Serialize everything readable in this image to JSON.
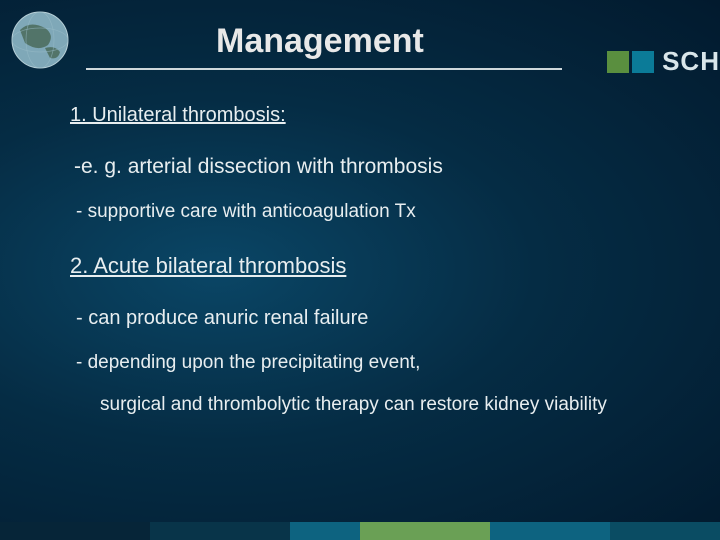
{
  "title": "Management",
  "logo_text": "SCH",
  "lines": {
    "l1": "1. Unilateral thrombosis:",
    "l2": "-e. g. arterial dissection with thrombosis",
    "l3": "- supportive care with anticoagulation Tx",
    "l4": "2. Acute bilateral thrombosis",
    "l5": "- can produce anuric renal failure",
    "l6": "- depending upon the precipitating event,",
    "l7": "surgical and thrombolytic therapy can restore kidney viability"
  },
  "colors": {
    "title_text": "#e8e8e8",
    "body_text": "#e8eef0",
    "underline": "#cfd8db",
    "logo_green": "#5a8f3f",
    "logo_teal": "#0b7b98",
    "bg_inner": "#0a4666",
    "bg_outer": "#021a2e"
  },
  "footer_segments": [
    {
      "color": "#062538",
      "width": 150
    },
    {
      "color": "#083449",
      "width": 140
    },
    {
      "color": "#0d6380",
      "width": 70
    },
    {
      "color": "#6aa055",
      "width": 130
    },
    {
      "color": "#0d6380",
      "width": 120
    },
    {
      "color": "#0a4c63",
      "width": 110
    }
  ],
  "font_sizes": {
    "title": 34,
    "section": 20,
    "body": 19
  }
}
